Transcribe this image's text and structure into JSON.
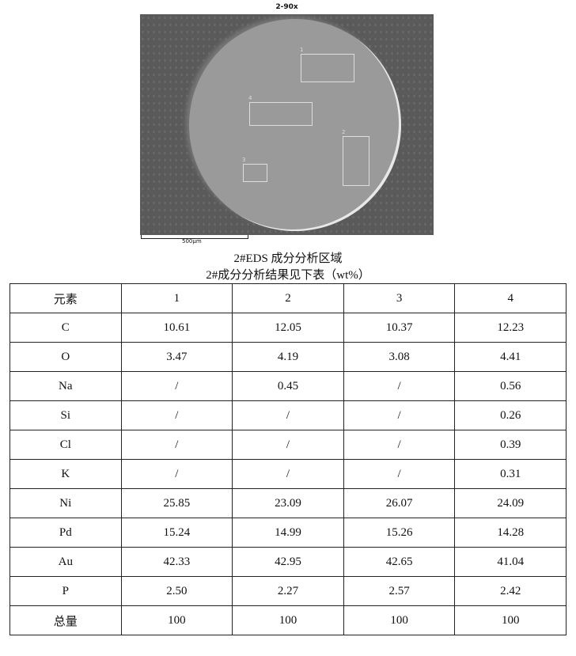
{
  "figure": {
    "title": "2-90x",
    "scale_label": "500µm",
    "regions": [
      "1",
      "2",
      "3",
      "4"
    ]
  },
  "captions": [
    "2#EDS 成分分析区域",
    "2#成分分析结果见下表（wt%）"
  ],
  "table": {
    "header": [
      "元素",
      "1",
      "2",
      "3",
      "4"
    ],
    "rows": [
      [
        "C",
        "10.61",
        "12.05",
        "10.37",
        "12.23"
      ],
      [
        "O",
        "3.47",
        "4.19",
        "3.08",
        "4.41"
      ],
      [
        "Na",
        "/",
        "0.45",
        "/",
        "0.56"
      ],
      [
        "Si",
        "/",
        "/",
        "/",
        "0.26"
      ],
      [
        "Cl",
        "/",
        "/",
        "/",
        "0.39"
      ],
      [
        "K",
        "/",
        "/",
        "/",
        "0.31"
      ],
      [
        "Ni",
        "25.85",
        "23.09",
        "26.07",
        "24.09"
      ],
      [
        "Pd",
        "15.24",
        "14.99",
        "15.26",
        "14.28"
      ],
      [
        "Au",
        "42.33",
        "42.95",
        "42.65",
        "41.04"
      ],
      [
        "P",
        "2.50",
        "2.27",
        "2.57",
        "2.42"
      ],
      [
        "总量",
        "100",
        "100",
        "100",
        "100"
      ]
    ]
  }
}
